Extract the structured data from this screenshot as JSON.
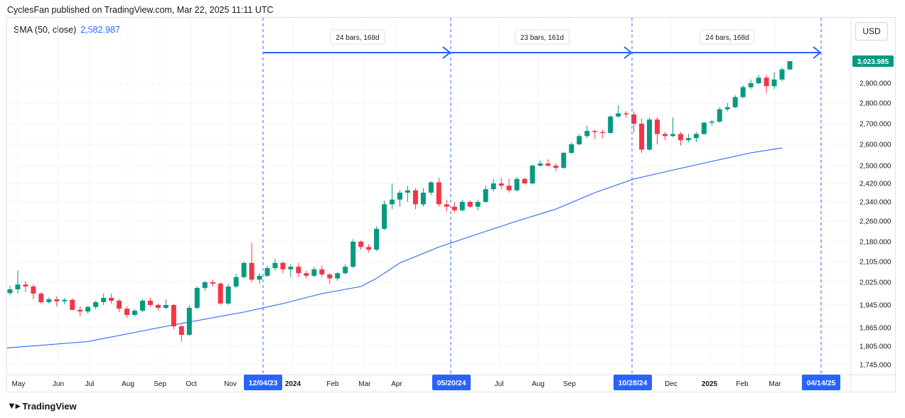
{
  "header": {
    "published": "CyclesFan published on TradingView.com, Mar 22, 2025 11:11 UTC"
  },
  "indicator": {
    "label": "SMA (50, close)",
    "value": "2,582.987"
  },
  "currency": "USD",
  "footer": {
    "brand": "TradingView"
  },
  "colors": {
    "up": "#089981",
    "down": "#f23645",
    "sma": "#2962ff",
    "cycle": "#2962ff",
    "price_badge": "#089981"
  },
  "chart_data": {
    "type": "candlestick",
    "ylim": [
      1700,
      3150
    ],
    "y_ticks": [
      "2,900.000",
      "2,800.000",
      "2,700.000",
      "2,600.000",
      "2,500.000",
      "2,420.000",
      "2,340.000",
      "2,260.000",
      "2,180.000",
      "2,105.000",
      "2,025.000",
      "1,945.000",
      "1,865.000",
      "1,805.000",
      "1,745.000"
    ],
    "y_tick_values": [
      2900,
      2800,
      2700,
      2600,
      2500,
      2420,
      2340,
      2260,
      2180,
      2105,
      2025,
      1945,
      1865,
      1805,
      1745
    ],
    "x_ticks": [
      "May",
      "Jun",
      "Jul",
      "Aug",
      "Sep",
      "Oct",
      "Nov",
      "2024",
      "Feb",
      "Mar",
      "Apr",
      "Jul",
      "Aug",
      "Sep",
      "Dec",
      "2025",
      "Feb",
      "Mar",
      "May"
    ],
    "last_price": "3,023.985",
    "cycle_lines": [
      {
        "date": "12/04/23"
      },
      {
        "date": "05/20/24"
      },
      {
        "date": "10/28/24"
      },
      {
        "date": "04/14/25"
      }
    ],
    "cycle_labels": [
      "24 bars, 168d",
      "23 bars, 161d",
      "24 bars, 168d"
    ],
    "candles": [
      [
        1987,
        2000,
        1980,
        2012
      ],
      [
        2000,
        2017,
        1985,
        2070
      ],
      [
        2017,
        2010,
        1990,
        2030
      ],
      [
        2010,
        1985,
        1965,
        2018
      ],
      [
        1985,
        1955,
        1950,
        1990
      ],
      [
        1955,
        1965,
        1950,
        1972
      ],
      [
        1965,
        1958,
        1940,
        1975
      ],
      [
        1958,
        1963,
        1948,
        1970
      ],
      [
        1963,
        1928,
        1925,
        1968
      ],
      [
        1928,
        1922,
        1905,
        1940
      ],
      [
        1922,
        1938,
        1915,
        1942
      ],
      [
        1938,
        1955,
        1930,
        1960
      ],
      [
        1955,
        1970,
        1945,
        1985
      ],
      [
        1970,
        1960,
        1950,
        1985
      ],
      [
        1960,
        1932,
        1920,
        1965
      ],
      [
        1932,
        1910,
        1900,
        1940
      ],
      [
        1910,
        1925,
        1905,
        1930
      ],
      [
        1925,
        1960,
        1920,
        1965
      ],
      [
        1960,
        1945,
        1938,
        1970
      ],
      [
        1945,
        1935,
        1925,
        1950
      ],
      [
        1935,
        1945,
        1930,
        1965
      ],
      [
        1945,
        1870,
        1860,
        1948
      ],
      [
        1870,
        1842,
        1820,
        1875
      ],
      [
        1842,
        1935,
        1838,
        1945
      ],
      [
        1935,
        2005,
        1930,
        2010
      ],
      [
        2005,
        2025,
        1995,
        2030
      ],
      [
        2025,
        2020,
        2010,
        2035
      ],
      [
        2020,
        1950,
        1945,
        2025
      ],
      [
        1950,
        2010,
        1945,
        2018
      ],
      [
        2010,
        2045,
        2005,
        2058
      ],
      [
        2045,
        2100,
        2040,
        2105
      ],
      [
        2100,
        2035,
        2025,
        2175
      ],
      [
        2035,
        2050,
        2020,
        2060
      ],
      [
        2050,
        2080,
        2045,
        2090
      ],
      [
        2080,
        2100,
        2070,
        2115
      ],
      [
        2100,
        2075,
        2060,
        2105
      ],
      [
        2075,
        2085,
        2045,
        2095
      ],
      [
        2085,
        2060,
        2045,
        2100
      ],
      [
        2060,
        2050,
        2040,
        2070
      ],
      [
        2050,
        2075,
        2045,
        2085
      ],
      [
        2075,
        2055,
        2045,
        2090
      ],
      [
        2055,
        2040,
        2020,
        2060
      ],
      [
        2040,
        2060,
        2030,
        2065
      ],
      [
        2060,
        2085,
        2055,
        2095
      ],
      [
        2085,
        2180,
        2080,
        2190
      ],
      [
        2180,
        2160,
        2150,
        2185
      ],
      [
        2160,
        2150,
        2140,
        2170
      ],
      [
        2150,
        2230,
        2145,
        2240
      ],
      [
        2230,
        2330,
        2225,
        2345
      ],
      [
        2330,
        2350,
        2310,
        2420
      ],
      [
        2350,
        2380,
        2320,
        2390
      ],
      [
        2380,
        2390,
        2340,
        2410
      ],
      [
        2390,
        2330,
        2310,
        2400
      ],
      [
        2330,
        2380,
        2320,
        2400
      ],
      [
        2380,
        2425,
        2370,
        2430
      ],
      [
        2425,
        2330,
        2320,
        2445
      ],
      [
        2330,
        2320,
        2300,
        2350
      ],
      [
        2320,
        2305,
        2295,
        2340
      ],
      [
        2305,
        2340,
        2300,
        2350
      ],
      [
        2340,
        2320,
        2315,
        2345
      ],
      [
        2320,
        2340,
        2305,
        2350
      ],
      [
        2340,
        2395,
        2335,
        2410
      ],
      [
        2395,
        2420,
        2385,
        2440
      ],
      [
        2420,
        2410,
        2395,
        2445
      ],
      [
        2410,
        2390,
        2380,
        2440
      ],
      [
        2390,
        2440,
        2385,
        2450
      ],
      [
        2440,
        2420,
        2415,
        2445
      ],
      [
        2420,
        2500,
        2415,
        2505
      ],
      [
        2500,
        2510,
        2495,
        2525
      ],
      [
        2510,
        2500,
        2495,
        2530
      ],
      [
        2500,
        2490,
        2475,
        2510
      ],
      [
        2490,
        2560,
        2485,
        2565
      ],
      [
        2560,
        2600,
        2555,
        2610
      ],
      [
        2600,
        2640,
        2595,
        2650
      ],
      [
        2640,
        2665,
        2630,
        2690
      ],
      [
        2665,
        2660,
        2625,
        2670
      ],
      [
        2660,
        2655,
        2630,
        2670
      ],
      [
        2655,
        2735,
        2650,
        2740
      ],
      [
        2735,
        2750,
        2730,
        2790
      ],
      [
        2750,
        2745,
        2730,
        2760
      ],
      [
        2745,
        2700,
        2660,
        2760
      ],
      [
        2700,
        2575,
        2560,
        2725
      ],
      [
        2575,
        2720,
        2570,
        2730
      ],
      [
        2720,
        2650,
        2600,
        2730
      ],
      [
        2650,
        2640,
        2620,
        2660
      ],
      [
        2640,
        2650,
        2635,
        2730
      ],
      [
        2650,
        2620,
        2595,
        2660
      ],
      [
        2620,
        2630,
        2610,
        2650
      ],
      [
        2630,
        2650,
        2610,
        2660
      ],
      [
        2650,
        2705,
        2645,
        2710
      ],
      [
        2705,
        2710,
        2690,
        2720
      ],
      [
        2710,
        2770,
        2705,
        2780
      ],
      [
        2770,
        2780,
        2760,
        2800
      ],
      [
        2780,
        2830,
        2775,
        2840
      ],
      [
        2830,
        2880,
        2825,
        2890
      ],
      [
        2880,
        2900,
        2870,
        2920
      ],
      [
        2900,
        2930,
        2895,
        2945
      ],
      [
        2930,
        2885,
        2850,
        2945
      ],
      [
        2885,
        2920,
        2870,
        2960
      ],
      [
        2920,
        2975,
        2910,
        2985
      ],
      [
        2975,
        3020,
        2970,
        3045
      ]
    ],
    "sma": [
      [
        0,
        1800
      ],
      [
        10,
        1820
      ],
      [
        20,
        1870
      ],
      [
        30,
        1920
      ],
      [
        35,
        1950
      ],
      [
        40,
        1985
      ],
      [
        45,
        2010
      ],
      [
        47,
        2040
      ],
      [
        50,
        2100
      ],
      [
        55,
        2160
      ],
      [
        60,
        2210
      ],
      [
        65,
        2260
      ],
      [
        70,
        2310
      ],
      [
        75,
        2380
      ],
      [
        80,
        2440
      ],
      [
        85,
        2480
      ],
      [
        90,
        2520
      ],
      [
        95,
        2560
      ],
      [
        99,
        2583
      ]
    ]
  }
}
